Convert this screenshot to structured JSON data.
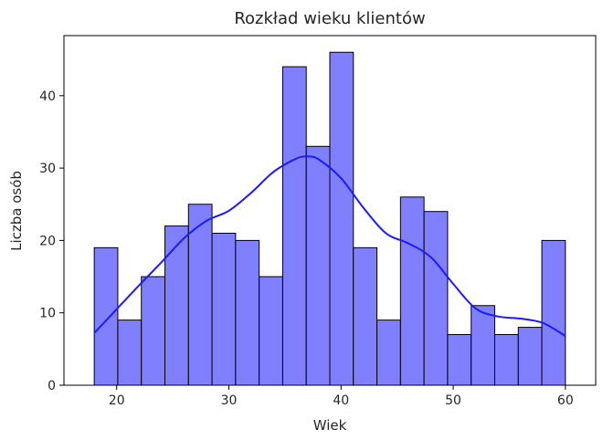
{
  "chart_data": {
    "type": "bar",
    "title": "Rozkład wieku klientów",
    "xlabel": "Wiek",
    "ylabel": "Liczba osób",
    "xlim": [
      15.3,
      62.7
    ],
    "ylim": [
      0,
      48.3
    ],
    "xticks": [
      20,
      30,
      40,
      50,
      60
    ],
    "yticks": [
      0,
      10,
      20,
      30,
      40
    ],
    "grid": false,
    "bins": {
      "start": 18,
      "end": 60,
      "edges": [
        18,
        20.1,
        22.2,
        24.3,
        26.4,
        28.5,
        30.6,
        32.7,
        34.8,
        36.9,
        39.0,
        41.1,
        43.2,
        45.3,
        47.4,
        49.5,
        51.6,
        53.7,
        55.8,
        57.9,
        60
      ],
      "counts": [
        19,
        9,
        15,
        22,
        25,
        21,
        20,
        15,
        44,
        33,
        46,
        19,
        9,
        26,
        24,
        7,
        11,
        7,
        8,
        20
      ]
    },
    "kde": {
      "x": [
        18,
        20,
        22,
        24,
        26,
        28,
        30,
        32,
        34,
        36,
        37,
        38,
        40,
        42,
        44,
        46,
        48,
        50,
        52,
        54,
        56,
        58,
        60
      ],
      "y": [
        7.2,
        10.5,
        13.8,
        17.0,
        20.3,
        22.7,
        24.1,
        26.6,
        29.5,
        31.3,
        31.6,
        31.2,
        28.6,
        24.5,
        21.0,
        19.6,
        17.7,
        14.0,
        10.6,
        9.5,
        9.2,
        8.6,
        6.8
      ]
    },
    "colors": {
      "bar_fill": "#8080ff",
      "bar_edge": "#000000",
      "kde_line": "#1a1aff",
      "axis": "#000000"
    }
  }
}
